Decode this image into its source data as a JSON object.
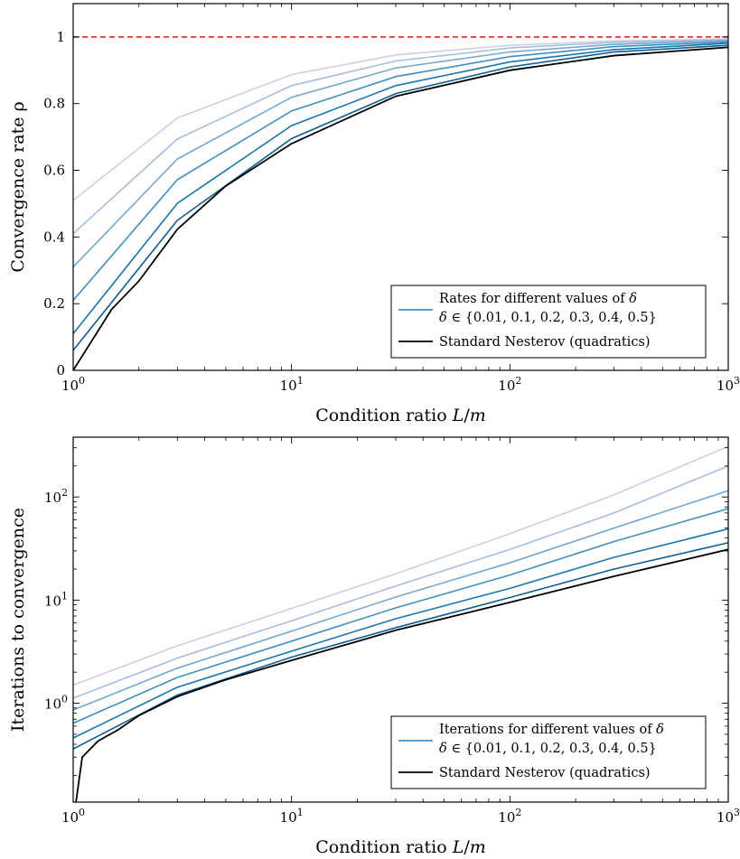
{
  "chart_data": [
    {
      "type": "line",
      "title": "",
      "xlabel": "Condition ratio L/m",
      "ylabel": "Convergence rate ρ",
      "xscale": "log",
      "yscale": "linear",
      "xlim": [
        1,
        1000
      ],
      "ylim": [
        0,
        1.1
      ],
      "x_ticks": [
        {
          "value": 1,
          "base": "10",
          "exp": "0"
        },
        {
          "value": 10,
          "base": "10",
          "exp": "1"
        },
        {
          "value": 100,
          "base": "10",
          "exp": "2"
        },
        {
          "value": 1000,
          "base": "10",
          "exp": "3"
        }
      ],
      "y_ticks": [
        {
          "value": 0,
          "label": "0"
        },
        {
          "value": 0.2,
          "label": "0.2"
        },
        {
          "value": 0.4,
          "label": "0.4"
        },
        {
          "value": 0.6,
          "label": "0.6"
        },
        {
          "value": 0.8,
          "label": "0.8"
        },
        {
          "value": 1,
          "label": "1"
        }
      ],
      "grid": false,
      "legend_position": "bottom-right",
      "legend": [
        {
          "line1": "Rates for different values of δ",
          "line2": "δ ∈ {0.01, 0.1, 0.2, 0.3, 0.4, 0.5}",
          "color": "#2d7fb8"
        },
        {
          "line1": "Standard Nesterov (quadratics)",
          "color": "#000000"
        }
      ],
      "reference_line": {
        "y": 1,
        "color": "#d62728",
        "style": "dashed"
      },
      "x": [
        1,
        3,
        10,
        30,
        100,
        300,
        1000
      ],
      "series": [
        {
          "color": "#cbd0e6",
          "values": [
            0.51,
            0.757,
            0.887,
            0.946,
            0.975,
            0.988,
            0.994
          ]
        },
        {
          "color": "#a6bedb",
          "values": [
            0.41,
            0.694,
            0.854,
            0.928,
            0.967,
            0.984,
            0.992
          ]
        },
        {
          "color": "#75a7cf",
          "values": [
            0.31,
            0.634,
            0.819,
            0.907,
            0.955,
            0.978,
            0.989
          ]
        },
        {
          "color": "#3f8fc0",
          "values": [
            0.21,
            0.572,
            0.778,
            0.881,
            0.941,
            0.971,
            0.985
          ]
        },
        {
          "color": "#1876af",
          "values": [
            0.11,
            0.501,
            0.734,
            0.854,
            0.925,
            0.962,
            0.981
          ]
        },
        {
          "color": "#0c5e94",
          "values": [
            0.06,
            0.45,
            0.695,
            0.83,
            0.91,
            0.955,
            0.975
          ]
        }
      ],
      "baseline": {
        "color": "#000000",
        "x": [
          1,
          1.5,
          2,
          3,
          5,
          10,
          30,
          100,
          300,
          1000
        ],
        "values": [
          0,
          0.183,
          0.268,
          0.423,
          0.553,
          0.68,
          0.822,
          0.9,
          0.944,
          0.969
        ]
      }
    },
    {
      "type": "line",
      "title": "",
      "xlabel": "Condition ratio L/m",
      "ylabel": "Iterations to convergence",
      "xscale": "log",
      "yscale": "log",
      "xlim": [
        1,
        1000
      ],
      "ylim": [
        0.11,
        380
      ],
      "x_ticks": [
        {
          "value": 1,
          "base": "10",
          "exp": "0"
        },
        {
          "value": 10,
          "base": "10",
          "exp": "1"
        },
        {
          "value": 100,
          "base": "10",
          "exp": "2"
        },
        {
          "value": 1000,
          "base": "10",
          "exp": "3"
        }
      ],
      "y_ticks": [
        {
          "value": 1,
          "base": "10",
          "exp": "0"
        },
        {
          "value": 10,
          "base": "10",
          "exp": "1"
        },
        {
          "value": 100,
          "base": "10",
          "exp": "2"
        }
      ],
      "grid": false,
      "legend_position": "bottom-right",
      "legend": [
        {
          "line1": "Iterations for different values of δ",
          "line2": "δ ∈ {0.01, 0.1, 0.2, 0.3, 0.4, 0.5}",
          "color": "#2d7fb8"
        },
        {
          "line1": "Standard Nesterov (quadratics)",
          "color": "#000000"
        }
      ],
      "x": [
        1,
        3,
        10,
        30,
        100,
        300,
        1000
      ],
      "series": [
        {
          "color": "#cbd0e6",
          "values": [
            1.5,
            3.6,
            8.3,
            18,
            44,
            105,
            310
          ]
        },
        {
          "color": "#a6bedb",
          "values": [
            1.12,
            2.74,
            6.3,
            13.7,
            31,
            70,
            200
          ]
        },
        {
          "color": "#75a7cf",
          "values": [
            0.86,
            2.19,
            5.0,
            10.7,
            23,
            50,
            115
          ]
        },
        {
          "color": "#3f8fc0",
          "values": [
            0.64,
            1.78,
            4.0,
            8.4,
            17.5,
            37,
            77
          ]
        },
        {
          "color": "#1876af",
          "values": [
            0.46,
            1.43,
            3.2,
            6.6,
            13,
            26,
            49
          ]
        },
        {
          "color": "#0c5e94",
          "values": [
            0.36,
            1.2,
            2.8,
            5.4,
            10.6,
            20,
            36
          ]
        }
      ],
      "baseline": {
        "color": "#000000",
        "x": [
          1.03,
          1.1,
          1.3,
          1.6,
          2,
          3,
          5,
          10,
          30,
          100,
          300,
          1000
        ],
        "values": [
          0.11,
          0.3,
          0.43,
          0.55,
          0.76,
          1.16,
          1.69,
          2.6,
          5.1,
          9.5,
          17,
          31
        ]
      }
    }
  ]
}
